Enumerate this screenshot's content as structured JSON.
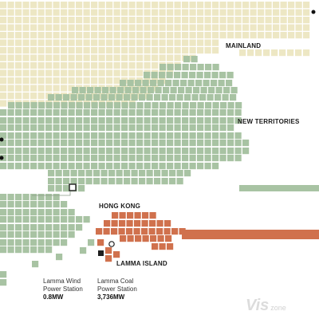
{
  "map": {
    "colors": {
      "mainland": "#ede7c4",
      "territories": "#a8c3a3",
      "hongkong": "#d0714d",
      "power_wind": "#1f1f1f",
      "power_coal": "#1f1f1f"
    },
    "labels": {
      "mainland": "MAINLAND",
      "new_territories": "NEW TERRITORIES",
      "hong_kong": "HONG KONG",
      "lamma_island": "LAMMA ISLAND"
    },
    "stations": [
      {
        "name_line1": "Lamma Wind",
        "name_line2": "Power Station",
        "capacity": "0.8MW"
      },
      {
        "name_line1": "Lamma Coal",
        "name_line2": "Power Station",
        "capacity": "3,736MW"
      }
    ]
  },
  "watermark": {
    "brand_big": "Vis",
    "brand_small": "zone"
  }
}
